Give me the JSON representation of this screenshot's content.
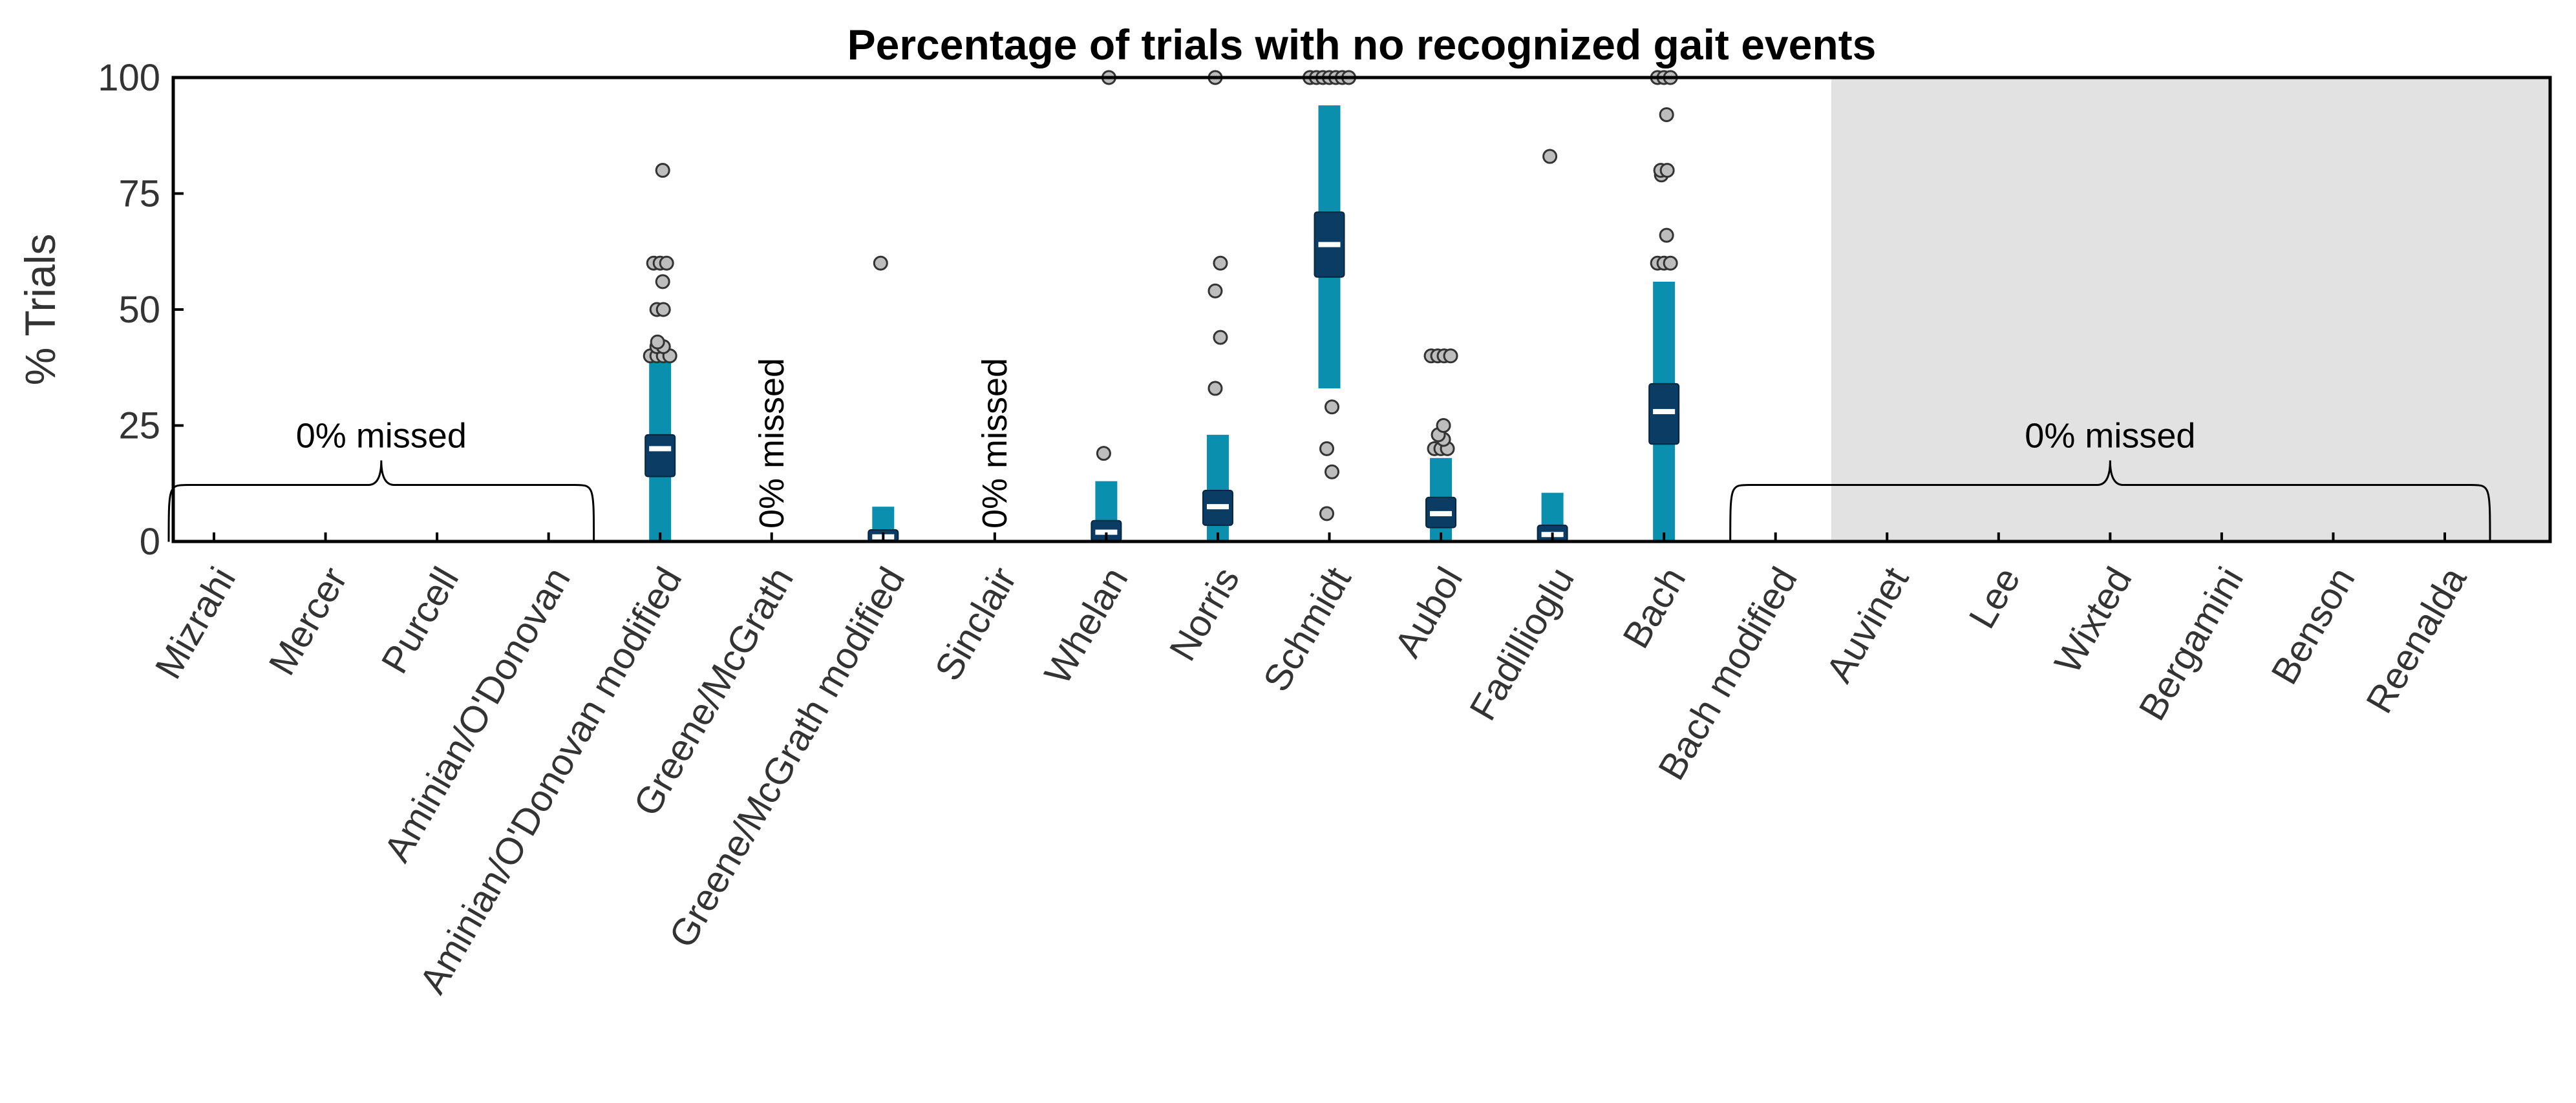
{
  "chart_data": {
    "type": "box",
    "title": "Percentage of trials with no recognized gait events",
    "ylabel": "% Trials",
    "xlabel": "",
    "ylim": [
      0,
      100
    ],
    "yticks": [
      0,
      25,
      50,
      75,
      100
    ],
    "grid": false,
    "categories": [
      "Mizrahi",
      "Mercer",
      "Purcell",
      "Aminian/O'Donovan",
      "Aminian/O'Donovan modified",
      "Greene/McGrath",
      "Greene/McGrath modified",
      "Sinclair",
      "Whelan",
      "Norris",
      "Schmidt",
      "Aubol",
      "Fadillioglu",
      "Bach",
      "Bach modified",
      "Auvinet",
      "Lee",
      "Wixted",
      "Bergamini",
      "Benson",
      "Reenalda"
    ],
    "shaded_region": {
      "from_category": "Auvinet",
      "to_category": "Reenalda",
      "color": "#e2e2e2"
    },
    "series": [
      {
        "category": "Aminian/O'Donovan modified",
        "whisker_low": 0,
        "whisker_high": 40,
        "q1": 14,
        "q3": 23,
        "median": 20,
        "outliers": [
          40,
          40,
          40,
          40,
          42,
          42,
          43,
          50,
          50,
          56,
          60,
          60,
          60,
          80
        ]
      },
      {
        "category": "Greene/McGrath modified",
        "whisker_low": 0,
        "whisker_high": 7.5,
        "q1": 0,
        "q3": 2.5,
        "median": 1,
        "outliers": [
          60
        ]
      },
      {
        "category": "Whelan",
        "whisker_low": 0,
        "whisker_high": 13,
        "q1": 0,
        "q3": 4.5,
        "median": 2,
        "outliers": [
          19,
          100
        ]
      },
      {
        "category": "Norris",
        "whisker_low": 0,
        "whisker_high": 23,
        "q1": 3.5,
        "q3": 11,
        "median": 7.5,
        "outliers": [
          33,
          44,
          54,
          60,
          100
        ]
      },
      {
        "category": "Schmidt",
        "whisker_low": 33,
        "whisker_high": 94,
        "q1": 57,
        "q3": 71,
        "median": 64,
        "outliers": [
          6,
          15,
          20,
          29,
          100,
          100,
          100,
          100,
          100,
          100,
          100
        ]
      },
      {
        "category": "Aubol",
        "whisker_low": 0,
        "whisker_high": 18,
        "q1": 3,
        "q3": 9.5,
        "median": 6,
        "outliers": [
          20,
          20,
          20,
          22,
          23,
          25,
          40,
          40,
          40,
          40
        ]
      },
      {
        "category": "Fadillioglu",
        "whisker_low": 0,
        "whisker_high": 10.5,
        "q1": 0,
        "q3": 3.5,
        "median": 1.5,
        "outliers": [
          83
        ]
      },
      {
        "category": "Bach",
        "whisker_low": 0,
        "whisker_high": 56,
        "q1": 21,
        "q3": 34,
        "median": 28,
        "outliers": [
          60,
          60,
          60,
          66,
          79,
          80,
          80,
          92,
          100,
          100,
          100
        ]
      }
    ],
    "annotations": [
      {
        "text": "0% missed",
        "orientation": "horizontal",
        "brace": true,
        "from_category": "Mizrahi",
        "to_category": "Aminian/O'Donovan",
        "y": 25
      },
      {
        "text": "0% missed",
        "orientation": "vertical",
        "brace": false,
        "category": "Greene/McGrath"
      },
      {
        "text": "0% missed",
        "orientation": "vertical",
        "brace": false,
        "category": "Sinclair"
      },
      {
        "text": "0% missed",
        "orientation": "horizontal",
        "brace": true,
        "from_category": "Bach modified",
        "to_category": "Reenalda",
        "y": 25
      }
    ],
    "colors": {
      "whisker": "#0a8fae",
      "box": "#0b3c63",
      "median": "#ffffff",
      "outlier_fill": "#bdbdbd",
      "outlier_stroke": "#333333",
      "shade": "#e2e2e2",
      "axis": "#000000"
    }
  }
}
